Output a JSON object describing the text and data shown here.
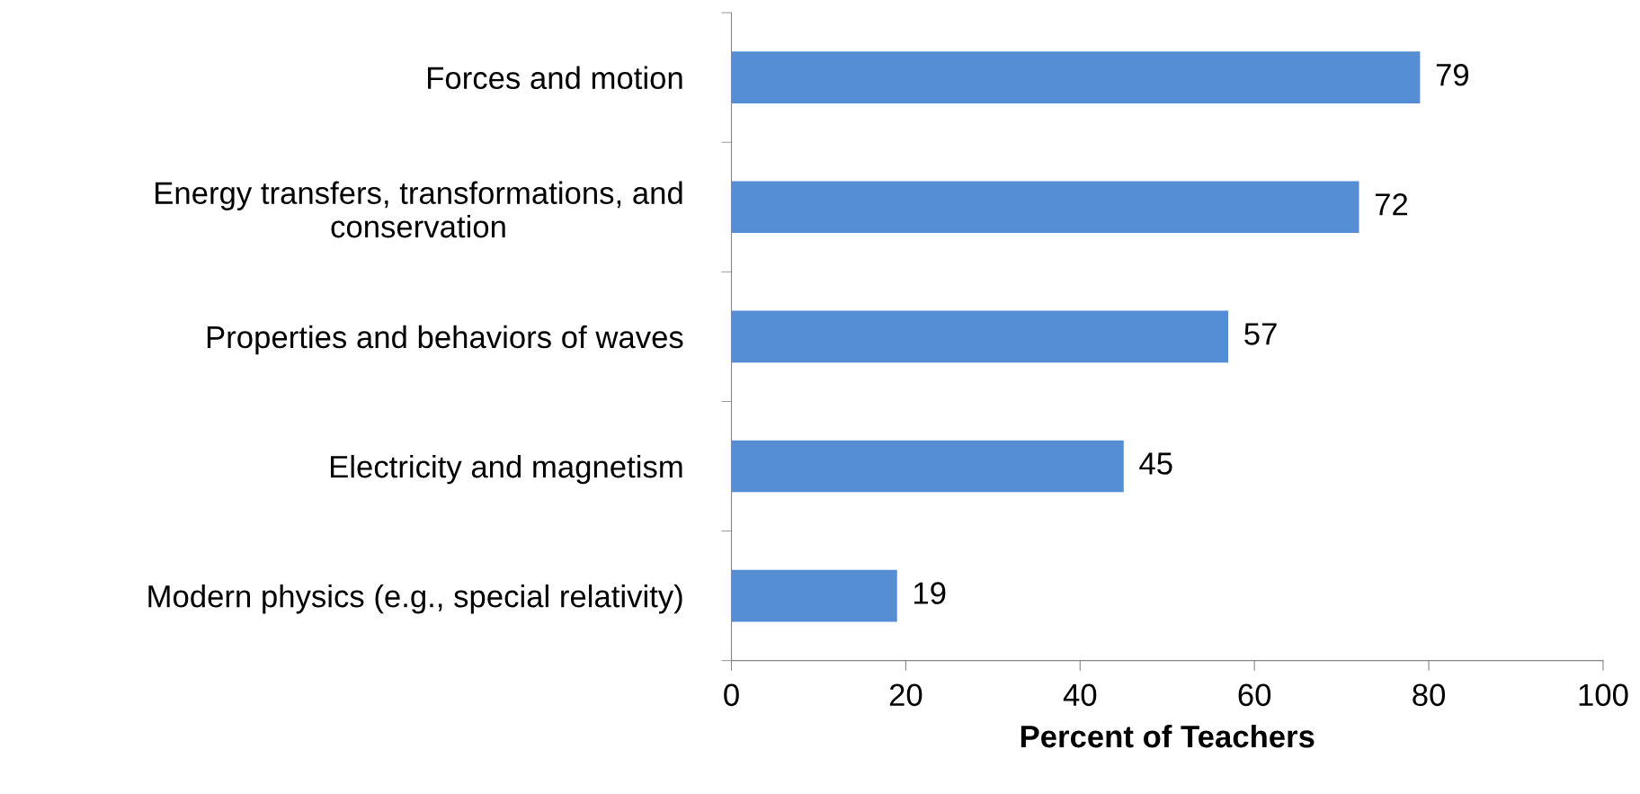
{
  "chart_data": {
    "type": "bar",
    "orientation": "horizontal",
    "xlabel": "Percent of Teachers",
    "categories": [
      "Forces and motion",
      "Energy transfers, transformations, and\nconservation",
      "Properties and behaviors of waves",
      "Electricity and magnetism",
      "Modern physics (e.g., special relativity)"
    ],
    "values": [
      79,
      72,
      57,
      45,
      19
    ],
    "color": "#558ed5",
    "xlim": [
      0,
      100
    ],
    "xticks": [
      0,
      20,
      40,
      60,
      80,
      100
    ],
    "grid": false,
    "data_labels": true
  }
}
